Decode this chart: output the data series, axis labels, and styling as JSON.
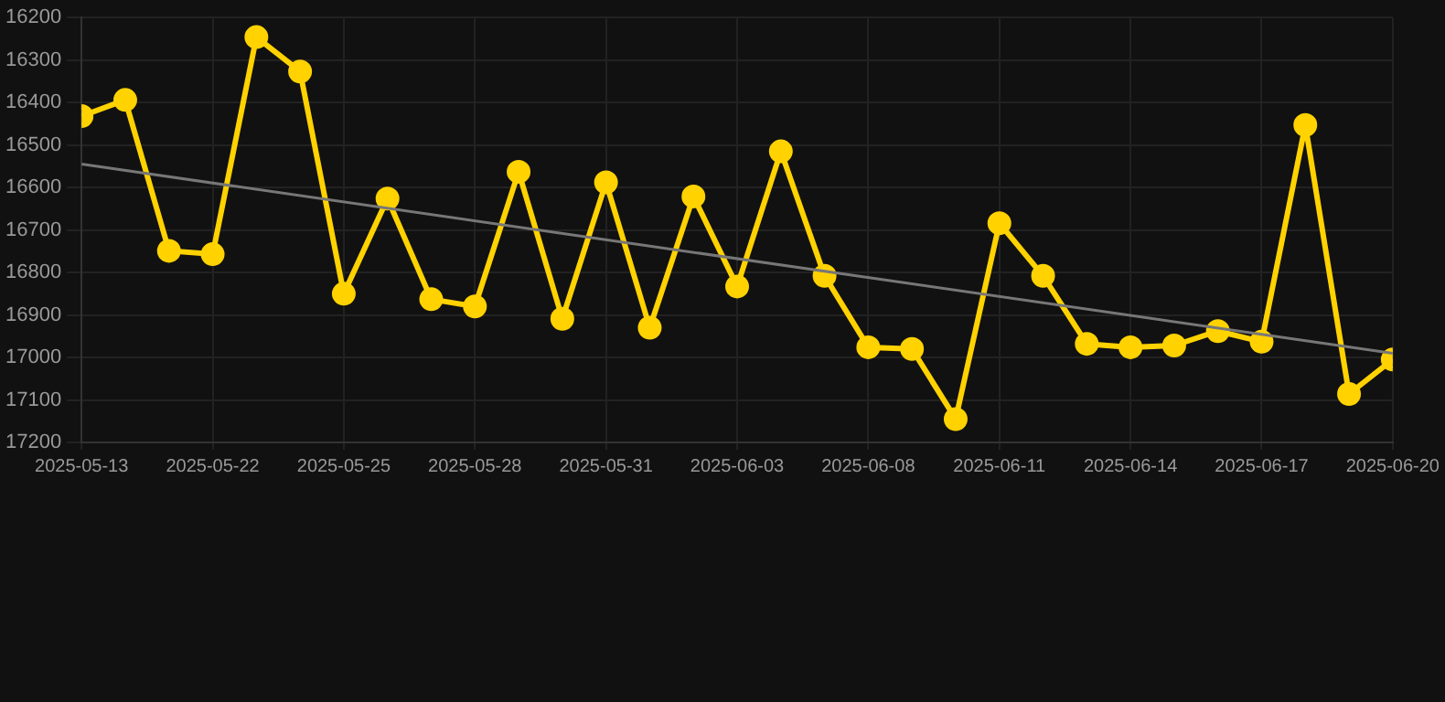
{
  "chart_data": {
    "type": "line",
    "categories": [
      "2025-05-13",
      null,
      null,
      "2025-05-22",
      null,
      null,
      "2025-05-25",
      null,
      null,
      "2025-05-28",
      null,
      null,
      "2025-05-31",
      null,
      null,
      "2025-06-03",
      null,
      null,
      "2025-06-08",
      null,
      null,
      "2025-06-11",
      null,
      null,
      "2025-06-14",
      null,
      null,
      "2025-06-17",
      null,
      null,
      "2025-06-20"
    ],
    "series": [
      {
        "color": "#ffd200",
        "values": [
          16432,
          16394,
          16749,
          16757,
          16246,
          16327,
          16850,
          16626,
          16863,
          16880,
          16563,
          16909,
          16588,
          16930,
          16621,
          16833,
          16515,
          16808,
          16976,
          16980,
          17145,
          16684,
          16808,
          16968,
          16976,
          16972,
          16938,
          16963,
          16453,
          17086,
          17005
        ]
      },
      {
        "type": "line",
        "color": "#777777",
        "marker": "none",
        "values": [
          16545,
          null,
          null,
          null,
          null,
          null,
          null,
          null,
          null,
          null,
          null,
          null,
          null,
          null,
          null,
          null,
          null,
          null,
          null,
          null,
          null,
          null,
          null,
          null,
          null,
          null,
          null,
          null,
          null,
          null,
          16990
        ]
      }
    ],
    "ylim": [
      17200,
      16200
    ],
    "yticks": [
      16200,
      16300,
      16400,
      16500,
      16600,
      16700,
      16800,
      16900,
      17000,
      17100,
      17200
    ],
    "grid": true,
    "marker": "circle",
    "line_style": "solid"
  }
}
